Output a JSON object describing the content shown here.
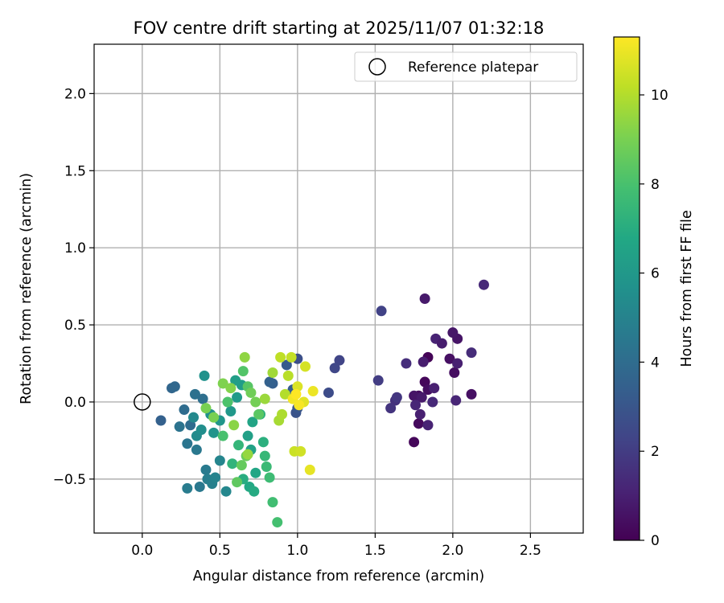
{
  "chart_data": {
    "type": "scatter",
    "title": "FOV centre drift starting at 2025/11/07 01:32:18",
    "xlabel": "Angular distance from reference (arcmin)",
    "ylabel": "Rotation from reference (arcmin)",
    "xlim": [
      -0.31,
      2.84
    ],
    "ylim": [
      -0.85,
      2.32
    ],
    "xticks": [
      0.0,
      0.5,
      1.0,
      1.5,
      2.0,
      2.5
    ],
    "xtick_labels": [
      "0.0",
      "0.5",
      "1.0",
      "1.5",
      "2.0",
      "2.5"
    ],
    "yticks": [
      -0.5,
      0.0,
      0.5,
      1.0,
      1.5,
      2.0
    ],
    "ytick_labels": [
      "−0.5",
      "0.0",
      "0.5",
      "1.0",
      "1.5",
      "2.0"
    ],
    "grid": true,
    "legend": {
      "placement": "top-right",
      "entries": [
        {
          "label": "Reference platepar",
          "marker": "open-circle"
        }
      ]
    },
    "reference_point": {
      "x": 0.0,
      "y": 0.0
    },
    "colorbar": {
      "label": "Hours from first FF file",
      "colormap": "viridis",
      "range": [
        0,
        11.3
      ],
      "ticks": [
        0,
        2,
        4,
        6,
        8,
        10
      ],
      "tick_labels": [
        "0",
        "2",
        "4",
        "6",
        "8",
        "10"
      ]
    },
    "points": [
      {
        "x": 1.75,
        "y": -0.26,
        "c": 0.2
      },
      {
        "x": 1.78,
        "y": -0.14,
        "c": 0.3
      },
      {
        "x": 1.84,
        "y": 0.29,
        "c": 0.1
      },
      {
        "x": 1.82,
        "y": 0.13,
        "c": 0.2
      },
      {
        "x": 1.84,
        "y": 0.08,
        "c": 0.4
      },
      {
        "x": 1.78,
        "y": 0.04,
        "c": 0.3
      },
      {
        "x": 1.98,
        "y": 0.28,
        "c": 0.5
      },
      {
        "x": 2.01,
        "y": 0.19,
        "c": 0.4
      },
      {
        "x": 2.03,
        "y": 0.41,
        "c": 0.6
      },
      {
        "x": 2.0,
        "y": 0.45,
        "c": 0.7
      },
      {
        "x": 2.12,
        "y": 0.05,
        "c": 0.5
      },
      {
        "x": 1.75,
        "y": 0.04,
        "c": 0.6
      },
      {
        "x": 1.8,
        "y": 0.03,
        "c": 0.8
      },
      {
        "x": 1.81,
        "y": 0.26,
        "c": 0.9
      },
      {
        "x": 1.82,
        "y": 0.67,
        "c": 0.8
      },
      {
        "x": 1.88,
        "y": 0.09,
        "c": 1.0
      },
      {
        "x": 1.89,
        "y": 0.41,
        "c": 1.1
      },
      {
        "x": 1.93,
        "y": 0.38,
        "c": 0.9
      },
      {
        "x": 1.76,
        "y": -0.02,
        "c": 1.2
      },
      {
        "x": 1.79,
        "y": -0.08,
        "c": 1.0
      },
      {
        "x": 1.84,
        "y": -0.15,
        "c": 1.1
      },
      {
        "x": 1.87,
        "y": 0.0,
        "c": 1.3
      },
      {
        "x": 2.02,
        "y": 0.01,
        "c": 1.2
      },
      {
        "x": 2.03,
        "y": 0.25,
        "c": 1.0
      },
      {
        "x": 2.12,
        "y": 0.32,
        "c": 1.4
      },
      {
        "x": 2.2,
        "y": 0.76,
        "c": 1.3
      },
      {
        "x": 1.7,
        "y": 0.25,
        "c": 1.5
      },
      {
        "x": 1.63,
        "y": 0.01,
        "c": 1.6
      },
      {
        "x": 1.64,
        "y": 0.03,
        "c": 1.8
      },
      {
        "x": 1.6,
        "y": -0.04,
        "c": 1.7
      },
      {
        "x": 1.52,
        "y": 0.14,
        "c": 2.0
      },
      {
        "x": 1.54,
        "y": 0.59,
        "c": 2.2
      },
      {
        "x": 1.27,
        "y": 0.27,
        "c": 2.3
      },
      {
        "x": 1.24,
        "y": 0.22,
        "c": 2.4
      },
      {
        "x": 1.2,
        "y": 0.06,
        "c": 2.6
      },
      {
        "x": 1.0,
        "y": 0.28,
        "c": 2.7
      },
      {
        "x": 0.99,
        "y": -0.07,
        "c": 2.9
      },
      {
        "x": 1.0,
        "y": -0.04,
        "c": 3.0
      },
      {
        "x": 0.93,
        "y": 0.24,
        "c": 3.2
      },
      {
        "x": 0.97,
        "y": 0.08,
        "c": 3.3
      },
      {
        "x": 0.84,
        "y": 0.12,
        "c": 3.4
      },
      {
        "x": 0.82,
        "y": 0.13,
        "c": 3.5
      },
      {
        "x": 0.12,
        "y": -0.12,
        "c": 3.5
      },
      {
        "x": 0.19,
        "y": 0.09,
        "c": 3.7
      },
      {
        "x": 0.21,
        "y": 0.1,
        "c": 3.8
      },
      {
        "x": 0.27,
        "y": -0.05,
        "c": 4.0
      },
      {
        "x": 0.31,
        "y": -0.15,
        "c": 4.0
      },
      {
        "x": 0.34,
        "y": 0.05,
        "c": 4.2
      },
      {
        "x": 0.39,
        "y": 0.02,
        "c": 4.1
      },
      {
        "x": 0.24,
        "y": -0.16,
        "c": 4.3
      },
      {
        "x": 0.29,
        "y": -0.27,
        "c": 4.4
      },
      {
        "x": 0.35,
        "y": -0.31,
        "c": 4.5
      },
      {
        "x": 0.41,
        "y": -0.44,
        "c": 4.6
      },
      {
        "x": 0.37,
        "y": -0.55,
        "c": 4.5
      },
      {
        "x": 0.29,
        "y": -0.56,
        "c": 4.7
      },
      {
        "x": 0.42,
        "y": -0.5,
        "c": 4.8
      },
      {
        "x": 0.45,
        "y": -0.53,
        "c": 4.9
      },
      {
        "x": 0.47,
        "y": -0.49,
        "c": 5.0
      },
      {
        "x": 0.5,
        "y": -0.38,
        "c": 5.1
      },
      {
        "x": 0.54,
        "y": -0.58,
        "c": 5.2
      },
      {
        "x": 0.33,
        "y": -0.1,
        "c": 5.3
      },
      {
        "x": 0.35,
        "y": -0.22,
        "c": 5.4
      },
      {
        "x": 0.38,
        "y": -0.18,
        "c": 5.5
      },
      {
        "x": 0.44,
        "y": -0.08,
        "c": 5.6
      },
      {
        "x": 0.4,
        "y": 0.17,
        "c": 5.7
      },
      {
        "x": 0.46,
        "y": -0.2,
        "c": 5.8
      },
      {
        "x": 0.5,
        "y": -0.12,
        "c": 5.9
      },
      {
        "x": 0.57,
        "y": -0.06,
        "c": 6.0
      },
      {
        "x": 0.61,
        "y": 0.03,
        "c": 6.1
      },
      {
        "x": 0.64,
        "y": 0.11,
        "c": 6.2
      },
      {
        "x": 0.6,
        "y": 0.14,
        "c": 6.3
      },
      {
        "x": 0.68,
        "y": -0.22,
        "c": 6.4
      },
      {
        "x": 0.7,
        "y": -0.31,
        "c": 6.5
      },
      {
        "x": 0.71,
        "y": -0.13,
        "c": 6.6
      },
      {
        "x": 0.73,
        "y": -0.46,
        "c": 6.7
      },
      {
        "x": 0.69,
        "y": -0.55,
        "c": 6.8
      },
      {
        "x": 0.72,
        "y": -0.58,
        "c": 6.9
      },
      {
        "x": 0.65,
        "y": -0.5,
        "c": 7.0
      },
      {
        "x": 0.78,
        "y": -0.26,
        "c": 7.1
      },
      {
        "x": 0.76,
        "y": -0.08,
        "c": 7.2
      },
      {
        "x": 0.58,
        "y": -0.4,
        "c": 7.3
      },
      {
        "x": 0.62,
        "y": -0.28,
        "c": 7.4
      },
      {
        "x": 0.79,
        "y": -0.35,
        "c": 7.5
      },
      {
        "x": 0.8,
        "y": -0.42,
        "c": 7.6
      },
      {
        "x": 0.82,
        "y": -0.49,
        "c": 7.7
      },
      {
        "x": 0.84,
        "y": -0.65,
        "c": 7.8
      },
      {
        "x": 0.87,
        "y": -0.78,
        "c": 7.9
      },
      {
        "x": 0.52,
        "y": -0.22,
        "c": 8.0
      },
      {
        "x": 0.55,
        "y": 0.0,
        "c": 8.1
      },
      {
        "x": 0.65,
        "y": 0.2,
        "c": 8.2
      },
      {
        "x": 0.68,
        "y": 0.1,
        "c": 8.3
      },
      {
        "x": 0.75,
        "y": -0.08,
        "c": 8.4
      },
      {
        "x": 0.61,
        "y": -0.52,
        "c": 8.5
      },
      {
        "x": 0.64,
        "y": -0.41,
        "c": 8.6
      },
      {
        "x": 0.67,
        "y": -0.35,
        "c": 8.7
      },
      {
        "x": 0.7,
        "y": 0.06,
        "c": 8.8
      },
      {
        "x": 0.73,
        "y": 0.0,
        "c": 8.9
      },
      {
        "x": 0.41,
        "y": -0.04,
        "c": 9.0
      },
      {
        "x": 0.46,
        "y": -0.1,
        "c": 9.0
      },
      {
        "x": 0.52,
        "y": 0.12,
        "c": 9.1
      },
      {
        "x": 0.57,
        "y": 0.09,
        "c": 9.2
      },
      {
        "x": 0.59,
        "y": -0.15,
        "c": 9.3
      },
      {
        "x": 0.66,
        "y": 0.29,
        "c": 9.4
      },
      {
        "x": 0.68,
        "y": -0.34,
        "c": 9.5
      },
      {
        "x": 0.79,
        "y": 0.02,
        "c": 9.6
      },
      {
        "x": 0.84,
        "y": 0.19,
        "c": 9.7
      },
      {
        "x": 0.88,
        "y": -0.12,
        "c": 9.8
      },
      {
        "x": 0.9,
        "y": -0.08,
        "c": 9.9
      },
      {
        "x": 0.92,
        "y": 0.05,
        "c": 10.0
      },
      {
        "x": 0.94,
        "y": 0.17,
        "c": 10.1
      },
      {
        "x": 0.89,
        "y": 0.29,
        "c": 10.2
      },
      {
        "x": 0.96,
        "y": 0.29,
        "c": 10.3
      },
      {
        "x": 0.98,
        "y": -0.32,
        "c": 10.4
      },
      {
        "x": 1.02,
        "y": -0.32,
        "c": 10.5
      },
      {
        "x": 1.05,
        "y": 0.23,
        "c": 10.6
      },
      {
        "x": 1.0,
        "y": 0.1,
        "c": 10.7
      },
      {
        "x": 1.04,
        "y": 0.0,
        "c": 10.8
      },
      {
        "x": 1.08,
        "y": -0.44,
        "c": 10.9
      },
      {
        "x": 1.1,
        "y": 0.07,
        "c": 11.0
      },
      {
        "x": 0.97,
        "y": 0.02,
        "c": 11.1
      },
      {
        "x": 1.01,
        "y": -0.02,
        "c": 11.2
      },
      {
        "x": 0.99,
        "y": 0.05,
        "c": 11.3
      }
    ]
  }
}
